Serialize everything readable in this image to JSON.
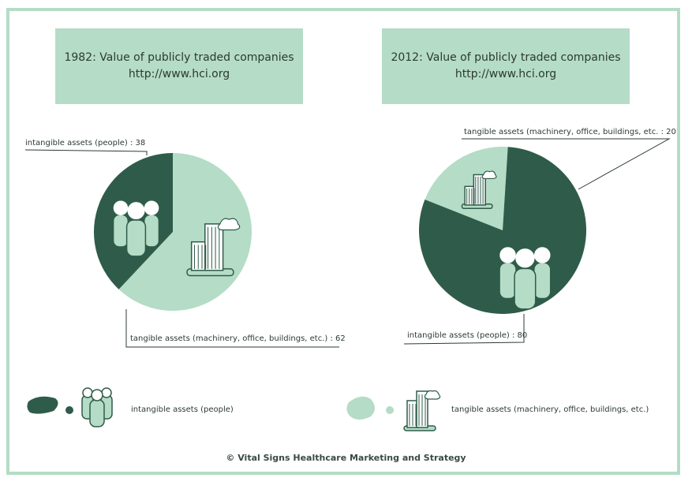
{
  "colors": {
    "intangible": "#2f5c4a",
    "tangible": "#b5dcc6",
    "frame": "#b5dcc6",
    "text": "#2c3a33"
  },
  "chart_data": [
    {
      "type": "pie",
      "title": "1982: Value of publicly traded companies",
      "subtitle": "http://www.hci.org",
      "slices": [
        {
          "label": "intangible assets (people)",
          "value": 38,
          "color": "#2f5c4a",
          "icon": "people-icon"
        },
        {
          "label": "tangible assets (machinery, office, buildings, etc.)",
          "value": 62,
          "color": "#b5dcc6",
          "icon": "building-icon"
        }
      ]
    },
    {
      "type": "pie",
      "title": "2012: Value of publicly traded companies",
      "subtitle": "http://www.hci.org",
      "slices": [
        {
          "label": "intangible assets (people)",
          "value": 80,
          "color": "#2f5c4a",
          "icon": "people-icon"
        },
        {
          "label": "tangible assets (machinery, office, buildings, etc.)",
          "value": 20,
          "color": "#b5dcc6",
          "icon": "building-icon"
        }
      ]
    }
  ],
  "labels": {
    "left_intangible": "intangible assets (people) : 38",
    "left_tangible": "tangible assets (machinery, office, buildings, etc.) : 62",
    "right_tangible": "tangible assets (machinery, office, buildings, etc. : 20",
    "right_intangible": "intangible assets (people) : 80"
  },
  "legend": [
    {
      "label": "intangible assets (people)",
      "color": "#2f5c4a",
      "icon": "people-icon"
    },
    {
      "label": "tangible assets (machinery, office, buildings, etc.)",
      "color": "#b5dcc6",
      "icon": "building-icon"
    }
  ],
  "credit": "© Vital Signs Healthcare Marketing and Strategy"
}
